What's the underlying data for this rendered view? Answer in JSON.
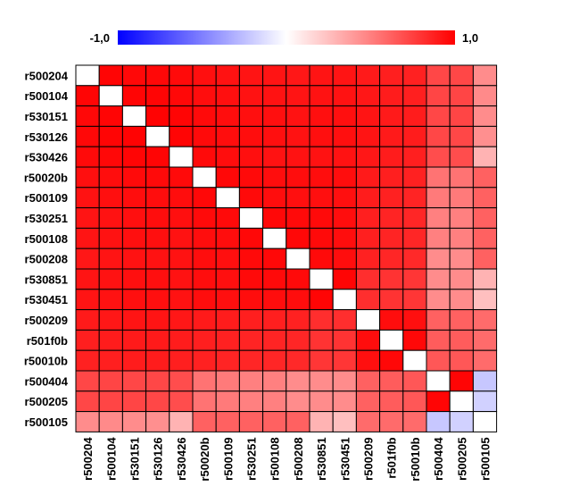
{
  "chart_data": {
    "type": "heatmap",
    "title": "",
    "color_scale": {
      "min": -1.0,
      "max": 1.0,
      "min_label": "-1,0",
      "max_label": "1,0",
      "low_color": "#0000ff",
      "mid_color": "#ffffff",
      "high_color": "#ff0000"
    },
    "diagonal_color": "#ffffff",
    "row_labels": [
      "r500204",
      "r500104",
      "r530151",
      "r530126",
      "r530426",
      "r50020b",
      "r500109",
      "r530251",
      "r500108",
      "r500208",
      "r530851",
      "r530451",
      "r500209",
      "r501f0b",
      "r50010b",
      "r500404",
      "r500205",
      "r500105"
    ],
    "col_labels": [
      "r500204",
      "r500104",
      "r530151",
      "r530126",
      "r530426",
      "r50020b",
      "r500109",
      "r530251",
      "r500108",
      "r500208",
      "r530851",
      "r530451",
      "r500209",
      "r501f0b",
      "r50010b",
      "r500404",
      "r500205",
      "r500105"
    ],
    "values": [
      [
        null,
        0.98,
        0.97,
        0.97,
        0.96,
        0.94,
        0.93,
        0.92,
        0.92,
        0.91,
        0.92,
        0.92,
        0.9,
        0.88,
        0.87,
        0.72,
        0.72,
        0.45
      ],
      [
        0.98,
        null,
        0.98,
        0.98,
        0.97,
        0.95,
        0.94,
        0.93,
        0.93,
        0.92,
        0.93,
        0.93,
        0.91,
        0.89,
        0.88,
        0.73,
        0.73,
        0.46
      ],
      [
        0.97,
        0.98,
        null,
        0.99,
        0.98,
        0.96,
        0.95,
        0.94,
        0.94,
        0.93,
        0.94,
        0.94,
        0.92,
        0.9,
        0.89,
        0.72,
        0.73,
        0.45
      ],
      [
        0.97,
        0.98,
        0.99,
        null,
        0.98,
        0.96,
        0.95,
        0.95,
        0.94,
        0.93,
        0.94,
        0.94,
        0.92,
        0.9,
        0.89,
        0.72,
        0.72,
        0.44
      ],
      [
        0.96,
        0.97,
        0.98,
        0.98,
        null,
        0.96,
        0.95,
        0.94,
        0.93,
        0.93,
        0.93,
        0.93,
        0.91,
        0.89,
        0.88,
        0.7,
        0.7,
        0.3
      ],
      [
        0.94,
        0.95,
        0.96,
        0.96,
        0.96,
        null,
        0.97,
        0.96,
        0.95,
        0.95,
        0.95,
        0.95,
        0.9,
        0.88,
        0.87,
        0.55,
        0.55,
        0.62
      ],
      [
        0.93,
        0.94,
        0.95,
        0.95,
        0.95,
        0.97,
        null,
        0.96,
        0.95,
        0.94,
        0.94,
        0.94,
        0.89,
        0.87,
        0.86,
        0.52,
        0.52,
        0.62
      ],
      [
        0.92,
        0.93,
        0.94,
        0.95,
        0.94,
        0.96,
        0.96,
        null,
        0.97,
        0.96,
        0.96,
        0.95,
        0.88,
        0.86,
        0.85,
        0.5,
        0.5,
        0.62
      ],
      [
        0.92,
        0.93,
        0.94,
        0.94,
        0.93,
        0.95,
        0.95,
        0.97,
        null,
        0.97,
        0.96,
        0.95,
        0.88,
        0.86,
        0.85,
        0.5,
        0.5,
        0.62
      ],
      [
        0.91,
        0.92,
        0.93,
        0.93,
        0.93,
        0.95,
        0.94,
        0.96,
        0.97,
        null,
        0.96,
        0.95,
        0.87,
        0.85,
        0.84,
        0.45,
        0.45,
        0.62
      ],
      [
        0.92,
        0.93,
        0.94,
        0.94,
        0.93,
        0.95,
        0.94,
        0.96,
        0.96,
        0.96,
        null,
        0.98,
        0.82,
        0.8,
        0.79,
        0.45,
        0.45,
        0.3
      ],
      [
        0.92,
        0.93,
        0.94,
        0.94,
        0.93,
        0.95,
        0.94,
        0.95,
        0.95,
        0.95,
        0.98,
        null,
        0.82,
        0.8,
        0.79,
        0.45,
        0.45,
        0.25
      ],
      [
        0.9,
        0.91,
        0.92,
        0.92,
        0.91,
        0.9,
        0.89,
        0.88,
        0.88,
        0.87,
        0.82,
        0.82,
        null,
        0.95,
        0.94,
        0.62,
        0.62,
        0.58
      ],
      [
        0.88,
        0.89,
        0.9,
        0.9,
        0.89,
        0.88,
        0.87,
        0.86,
        0.86,
        0.85,
        0.8,
        0.8,
        0.95,
        null,
        0.97,
        0.64,
        0.64,
        0.58
      ],
      [
        0.87,
        0.88,
        0.89,
        0.89,
        0.88,
        0.87,
        0.86,
        0.85,
        0.85,
        0.84,
        0.79,
        0.79,
        0.94,
        0.97,
        null,
        0.66,
        0.66,
        0.58
      ],
      [
        0.72,
        0.73,
        0.72,
        0.72,
        0.7,
        0.55,
        0.52,
        0.5,
        0.5,
        0.45,
        0.45,
        0.45,
        0.62,
        0.64,
        0.66,
        null,
        0.98,
        -0.22
      ],
      [
        0.72,
        0.73,
        0.73,
        0.72,
        0.7,
        0.55,
        0.52,
        0.5,
        0.5,
        0.45,
        0.45,
        0.45,
        0.62,
        0.64,
        0.66,
        0.98,
        null,
        -0.18
      ],
      [
        0.45,
        0.46,
        0.45,
        0.44,
        0.3,
        0.62,
        0.62,
        0.62,
        0.62,
        0.62,
        0.3,
        0.25,
        0.58,
        0.58,
        0.58,
        -0.22,
        -0.18,
        null
      ]
    ]
  }
}
